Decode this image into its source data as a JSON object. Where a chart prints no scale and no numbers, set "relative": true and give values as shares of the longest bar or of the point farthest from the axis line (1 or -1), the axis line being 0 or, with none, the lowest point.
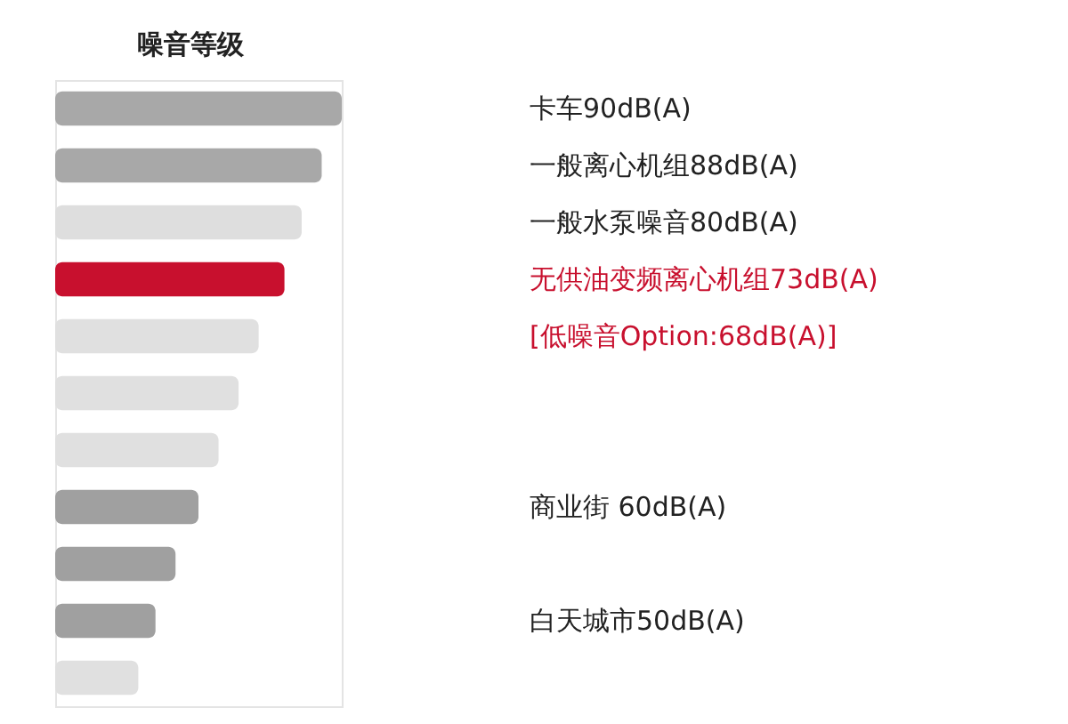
{
  "chart_data": {
    "type": "bar",
    "orientation": "horizontal",
    "relative": true,
    "title": "噪音等级",
    "categories": [
      "卡车90dB(A)",
      "一般离心机组88dB(A)",
      "一般水泵噪音80dB(A)",
      "无供油变频离心机组73dB(A)",
      null,
      null,
      null,
      "商业街 60dB(A)",
      null,
      "白天城市50dB(A)",
      null
    ],
    "values": [
      1,
      0.93,
      0.86,
      0.8,
      0.71,
      0.64,
      0.57,
      0.5,
      0.42,
      0.35,
      0.29
    ],
    "colors": [
      "#a8a8a8",
      "#a8a8a8",
      "#dedede",
      "#c8102e",
      "#e0e0e0",
      "#e0e0e0",
      "#e0e0e0",
      "#a0a0a0",
      "#a0a0a0",
      "#a0a0a0",
      "#e0e0e0"
    ],
    "annotations": [
      "[低噪音Option:68dB(A)]"
    ]
  }
}
